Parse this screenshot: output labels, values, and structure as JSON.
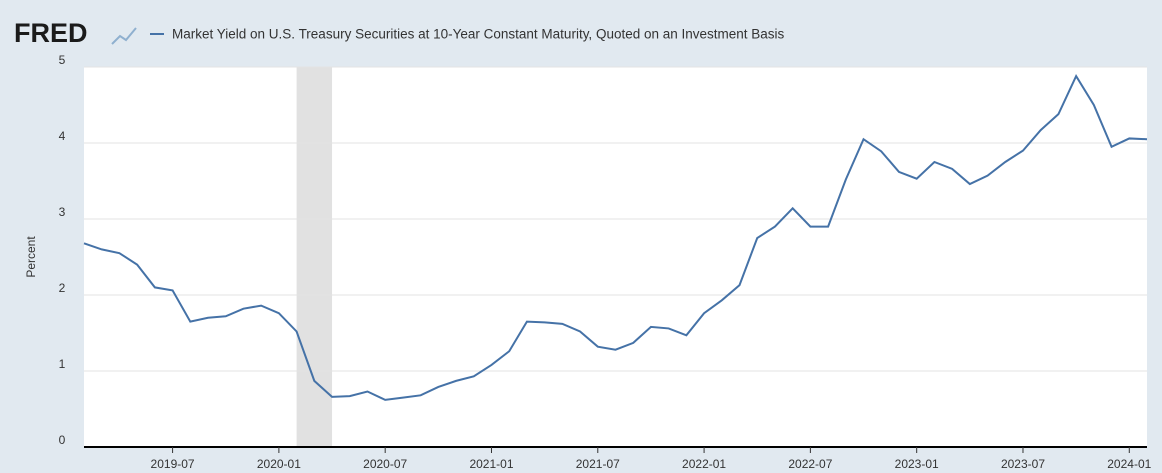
{
  "logo": "FRED",
  "chart_data": {
    "type": "line",
    "y_label": "Percent",
    "x": [
      "2019-02",
      "2019-03",
      "2019-04",
      "2019-05",
      "2019-06",
      "2019-07",
      "2019-08",
      "2019-09",
      "2019-10",
      "2019-11",
      "2019-12",
      "2020-01",
      "2020-02",
      "2020-03",
      "2020-04",
      "2020-05",
      "2020-06",
      "2020-07",
      "2020-08",
      "2020-09",
      "2020-10",
      "2020-11",
      "2020-12",
      "2021-01",
      "2021-02",
      "2021-03",
      "2021-04",
      "2021-05",
      "2021-06",
      "2021-07",
      "2021-08",
      "2021-09",
      "2021-10",
      "2021-11",
      "2021-12",
      "2022-01",
      "2022-02",
      "2022-03",
      "2022-04",
      "2022-05",
      "2022-06",
      "2022-07",
      "2022-08",
      "2022-09",
      "2022-10",
      "2022-11",
      "2022-12",
      "2023-01",
      "2023-02",
      "2023-03",
      "2023-04",
      "2023-05",
      "2023-06",
      "2023-07",
      "2023-08",
      "2023-09",
      "2023-10",
      "2023-11",
      "2023-12",
      "2024-01",
      "2024-02"
    ],
    "series": [
      {
        "name": "Market Yield on U.S. Treasury Securities at 10-Year Constant Maturity, Quoted on an Investment Basis",
        "color": "#4572a7",
        "values": [
          2.68,
          2.6,
          2.55,
          2.4,
          2.1,
          2.06,
          1.65,
          1.7,
          1.72,
          1.82,
          1.86,
          1.76,
          1.52,
          0.87,
          0.66,
          0.67,
          0.73,
          0.62,
          0.65,
          0.68,
          0.79,
          0.87,
          0.93,
          1.08,
          1.26,
          1.65,
          1.64,
          1.62,
          1.52,
          1.32,
          1.28,
          1.37,
          1.58,
          1.56,
          1.47,
          1.76,
          1.93,
          2.13,
          2.75,
          2.9,
          3.14,
          2.9,
          2.9,
          3.52,
          4.05,
          3.89,
          3.62,
          3.53,
          3.75,
          3.66,
          3.46,
          3.57,
          3.75,
          3.9,
          4.17,
          4.38,
          4.88,
          4.5,
          3.95,
          4.06,
          4.05
        ]
      }
    ],
    "xlim": [
      "2019-02",
      "2024-02"
    ],
    "xticks": [
      "2019-07",
      "2020-01",
      "2020-07",
      "2021-01",
      "2021-07",
      "2022-01",
      "2022-07",
      "2023-01",
      "2023-07",
      "2024-01"
    ],
    "ylim": [
      0,
      5
    ],
    "yticks": [
      0,
      1,
      2,
      3,
      4,
      5
    ],
    "shaded": [
      [
        "2020-02",
        "2020-04"
      ]
    ],
    "grid": true
  }
}
